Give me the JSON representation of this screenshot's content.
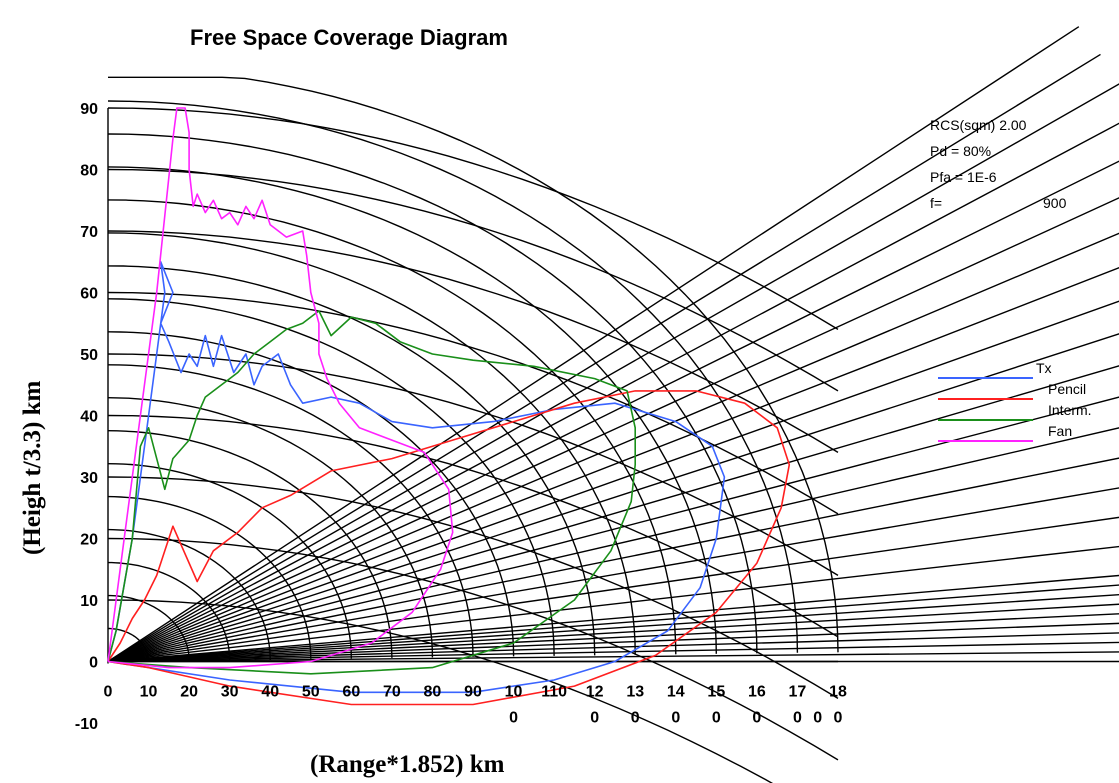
{
  "chart_data": {
    "type": "line",
    "title": "Free Space Coverage Diagram",
    "xlabel": "(Range*1.852) km",
    "ylabel": "(Heigh t/3.3) km",
    "xlim": [
      0,
      180
    ],
    "ylim": [
      -10,
      90
    ],
    "x_tick_labels_top": [
      "0",
      "10",
      "20",
      "30",
      "40",
      "50",
      "60",
      "70",
      "80",
      "90",
      "10",
      "110",
      "12",
      "13",
      "14",
      "15",
      "16",
      "17",
      "18"
    ],
    "x_tick_labels_bottom": [
      "0",
      "0",
      "0",
      "0",
      "0",
      "0",
      "0",
      "0",
      "0"
    ],
    "y_tick_labels": [
      "90",
      "80",
      "70",
      "60",
      "50",
      "40",
      "30",
      "20",
      "10",
      "0",
      "-10"
    ],
    "params": {
      "rcs": "RCS(sqm)  2.00",
      "pd": "Pd = 80%",
      "pfa": "Pfa = 1E-6",
      "f_label": "f=",
      "f_value": "900"
    },
    "grid": true,
    "legend_position": "right",
    "series": [
      {
        "name": "Tx",
        "color": "#3a64ff",
        "points": [
          [
            0,
            0
          ],
          [
            10,
            -1
          ],
          [
            30,
            -3
          ],
          [
            60,
            -5
          ],
          [
            90,
            -5
          ],
          [
            110,
            -3
          ],
          [
            125,
            0
          ],
          [
            138,
            5
          ],
          [
            146,
            12
          ],
          [
            150,
            20
          ],
          [
            152,
            30
          ],
          [
            149,
            35
          ],
          [
            140,
            39
          ],
          [
            125,
            42
          ],
          [
            110,
            41
          ],
          [
            95,
            39
          ],
          [
            80,
            38
          ],
          [
            70,
            39
          ],
          [
            62,
            42
          ],
          [
            55,
            43
          ],
          [
            48,
            42
          ],
          [
            45,
            45
          ],
          [
            42,
            50
          ],
          [
            38,
            48
          ],
          [
            36,
            45
          ],
          [
            34,
            50
          ],
          [
            31,
            47
          ],
          [
            28,
            53
          ],
          [
            26,
            48
          ],
          [
            24,
            53
          ],
          [
            22,
            48
          ],
          [
            20,
            50
          ],
          [
            18,
            47
          ],
          [
            15,
            52
          ],
          [
            13,
            55
          ],
          [
            16,
            60
          ],
          [
            13,
            65
          ],
          [
            14,
            60
          ],
          [
            10,
            40
          ],
          [
            6,
            20
          ],
          [
            2,
            5
          ],
          [
            0,
            0
          ]
        ]
      },
      {
        "name": "Pencil",
        "color": "#ff2020",
        "points": [
          [
            0,
            0
          ],
          [
            10,
            -1
          ],
          [
            30,
            -4
          ],
          [
            60,
            -7
          ],
          [
            90,
            -7
          ],
          [
            115,
            -4
          ],
          [
            135,
            1
          ],
          [
            150,
            8
          ],
          [
            160,
            16
          ],
          [
            166,
            25
          ],
          [
            168,
            32
          ],
          [
            165,
            38
          ],
          [
            157,
            42
          ],
          [
            145,
            44
          ],
          [
            130,
            44
          ],
          [
            115,
            42
          ],
          [
            100,
            39
          ],
          [
            85,
            36
          ],
          [
            70,
            33
          ],
          [
            55,
            31
          ],
          [
            45,
            27
          ],
          [
            38,
            25
          ],
          [
            32,
            21
          ],
          [
            26,
            18
          ],
          [
            22,
            13
          ],
          [
            16,
            22
          ],
          [
            14,
            18
          ],
          [
            12,
            14
          ],
          [
            9,
            10
          ],
          [
            6,
            7
          ],
          [
            3,
            3
          ],
          [
            0,
            0
          ]
        ]
      },
      {
        "name": "Interm.",
        "color": "#1a8f1a",
        "points": [
          [
            0,
            0
          ],
          [
            20,
            -1
          ],
          [
            50,
            -2
          ],
          [
            80,
            -1
          ],
          [
            100,
            3
          ],
          [
            115,
            10
          ],
          [
            124,
            18
          ],
          [
            129,
            26
          ],
          [
            130,
            32
          ],
          [
            130,
            38
          ],
          [
            128,
            44
          ],
          [
            120,
            46
          ],
          [
            105,
            48
          ],
          [
            90,
            49
          ],
          [
            80,
            50
          ],
          [
            72,
            52
          ],
          [
            66,
            55
          ],
          [
            60,
            56
          ],
          [
            55,
            53
          ],
          [
            52,
            57
          ],
          [
            48,
            55
          ],
          [
            44,
            54
          ],
          [
            40,
            52
          ],
          [
            36,
            50
          ],
          [
            32,
            47
          ],
          [
            28,
            45
          ],
          [
            24,
            43
          ],
          [
            22,
            40
          ],
          [
            20,
            36
          ],
          [
            16,
            33
          ],
          [
            14,
            28
          ],
          [
            12,
            33
          ],
          [
            10,
            38
          ],
          [
            8,
            35
          ],
          [
            6,
            20
          ],
          [
            2,
            5
          ],
          [
            0,
            0
          ]
        ]
      },
      {
        "name": "Fan",
        "color": "#ff22ff",
        "points": [
          [
            0,
            0
          ],
          [
            15,
            -1
          ],
          [
            30,
            -1
          ],
          [
            50,
            0
          ],
          [
            65,
            3
          ],
          [
            75,
            8
          ],
          [
            82,
            15
          ],
          [
            85,
            21
          ],
          [
            84,
            28
          ],
          [
            78,
            34
          ],
          [
            70,
            36
          ],
          [
            62,
            38
          ],
          [
            57,
            42
          ],
          [
            54,
            46
          ],
          [
            52,
            50
          ],
          [
            52,
            55
          ],
          [
            50,
            60
          ],
          [
            49,
            66
          ],
          [
            48,
            70
          ],
          [
            44,
            69
          ],
          [
            40,
            71
          ],
          [
            38,
            75
          ],
          [
            36,
            72
          ],
          [
            34,
            74
          ],
          [
            32,
            71
          ],
          [
            30,
            73
          ],
          [
            28,
            72
          ],
          [
            26,
            75
          ],
          [
            24,
            73
          ],
          [
            22,
            76
          ],
          [
            21,
            74
          ],
          [
            20,
            80
          ],
          [
            20,
            86
          ],
          [
            19,
            90
          ],
          [
            17,
            90
          ],
          [
            16,
            85
          ],
          [
            12,
            60
          ],
          [
            8,
            40
          ],
          [
            4,
            20
          ],
          [
            1,
            5
          ],
          [
            0,
            0
          ]
        ]
      }
    ]
  }
}
